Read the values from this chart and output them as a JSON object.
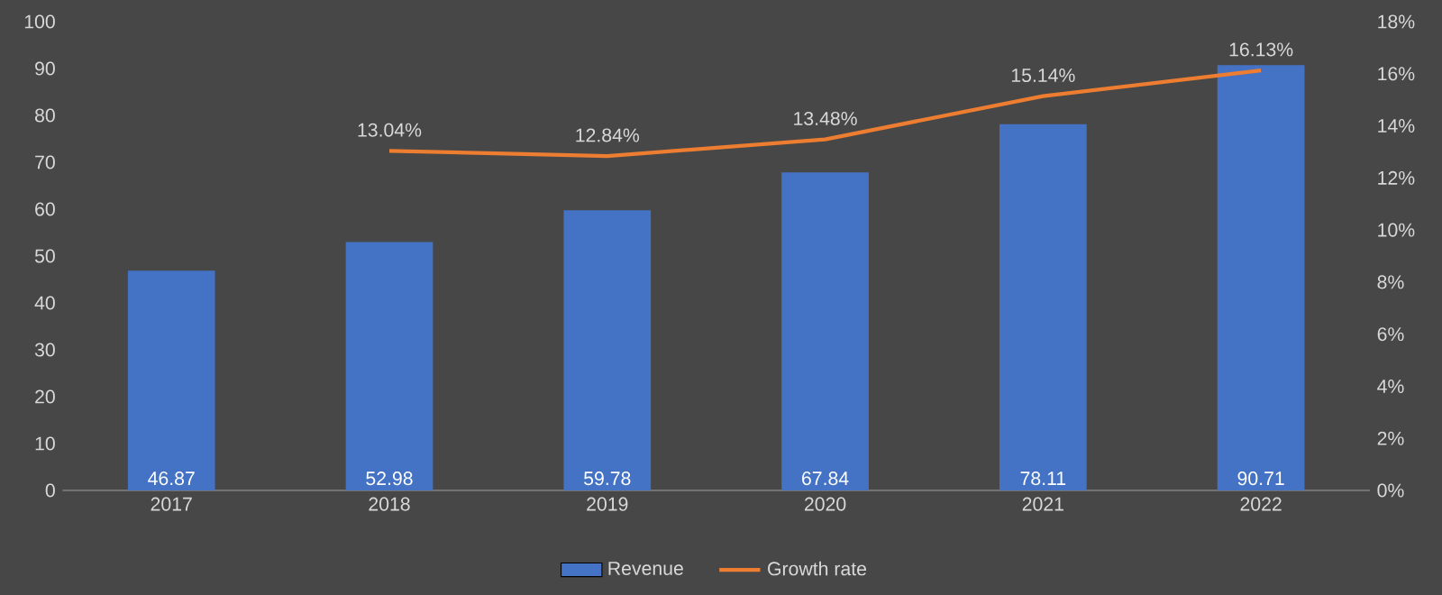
{
  "chart_data": {
    "type": "bar",
    "categories": [
      "2017",
      "2018",
      "2019",
      "2020",
      "2021",
      "2022"
    ],
    "series": [
      {
        "name": "Revenue",
        "color": "#4472c4",
        "values": [
          46.87,
          52.98,
          59.78,
          67.84,
          78.11,
          90.71
        ],
        "value_labels": [
          "46.87",
          "52.98",
          "59.78",
          "67.84",
          "78.11",
          "90.71"
        ]
      },
      {
        "name": "Growth rate",
        "type": "line",
        "axis": "y2",
        "color": "#ed7d31",
        "values": [
          null,
          13.04,
          12.84,
          13.48,
          15.14,
          16.13
        ],
        "value_labels": [
          null,
          "13.04%",
          "12.84%",
          "13.48%",
          "15.14%",
          "16.13%"
        ]
      }
    ],
    "ylim": [
      0,
      100
    ],
    "yticks": [
      0,
      10,
      20,
      30,
      40,
      50,
      60,
      70,
      80,
      90,
      100
    ],
    "y2lim": [
      0,
      18
    ],
    "y2ticks": [
      {
        "value": 0,
        "label": "0%"
      },
      {
        "value": 2,
        "label": "2%"
      },
      {
        "value": 4,
        "label": "4%"
      },
      {
        "value": 6,
        "label": "6%"
      },
      {
        "value": 8,
        "label": "8%"
      },
      {
        "value": 10,
        "label": "10%"
      },
      {
        "value": 12,
        "label": "12%"
      },
      {
        "value": 14,
        "label": "14%"
      },
      {
        "value": 16,
        "label": "16%"
      },
      {
        "value": 18,
        "label": "18%"
      }
    ],
    "legend": "bottom"
  }
}
